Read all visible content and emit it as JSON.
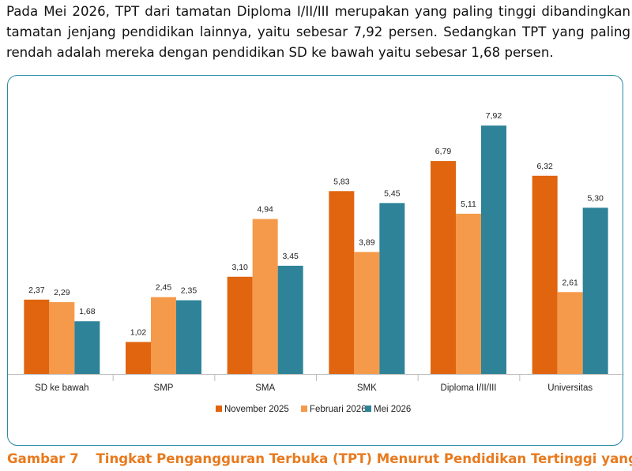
{
  "intro_text": "Pada Mei 2026, TPT dari tamatan Diploma I/II/III merupakan yang paling tinggi dibandingkan tamatan jenjang pendidikan lainnya, yaitu sebesar 7,92 persen. Sedangkan TPT yang paling rendah adalah mereka dengan pendidikan SD ke bawah yaitu sebesar 1,68 persen.",
  "caption": {
    "number": "Gambar 7",
    "title": "Tingkat Pengangguran Terbuka (TPT) Menurut Pendidikan Tertinggi yang"
  },
  "chart_data": {
    "type": "bar",
    "categories": [
      "SD ke bawah",
      "SMP",
      "SMA",
      "SMK",
      "Diploma I/II/III",
      "Universitas"
    ],
    "series": [
      {
        "name": "November 2025",
        "color": "#e0650e",
        "values": [
          2.37,
          1.02,
          3.1,
          5.83,
          6.79,
          6.32
        ],
        "labels": [
          "2,37",
          "1,02",
          "3,10",
          "5,83",
          "6,79",
          "6,32"
        ]
      },
      {
        "name": "Februari 2026",
        "color": "#f59a4a",
        "values": [
          2.29,
          2.45,
          4.94,
          3.89,
          5.11,
          2.61
        ],
        "labels": [
          "2,29",
          "2,45",
          "4,94",
          "3,89",
          "5,11",
          "2,61"
        ]
      },
      {
        "name": "Mei 2026",
        "color": "#2e8399",
        "values": [
          1.68,
          2.35,
          3.45,
          5.45,
          7.92,
          5.3
        ],
        "labels": [
          "1,68",
          "2,35",
          "3,45",
          "5,45",
          "7,92",
          "5,30"
        ]
      }
    ],
    "ylim": [
      0,
      8
    ],
    "grid": false,
    "legend_position": "bottom-center"
  }
}
